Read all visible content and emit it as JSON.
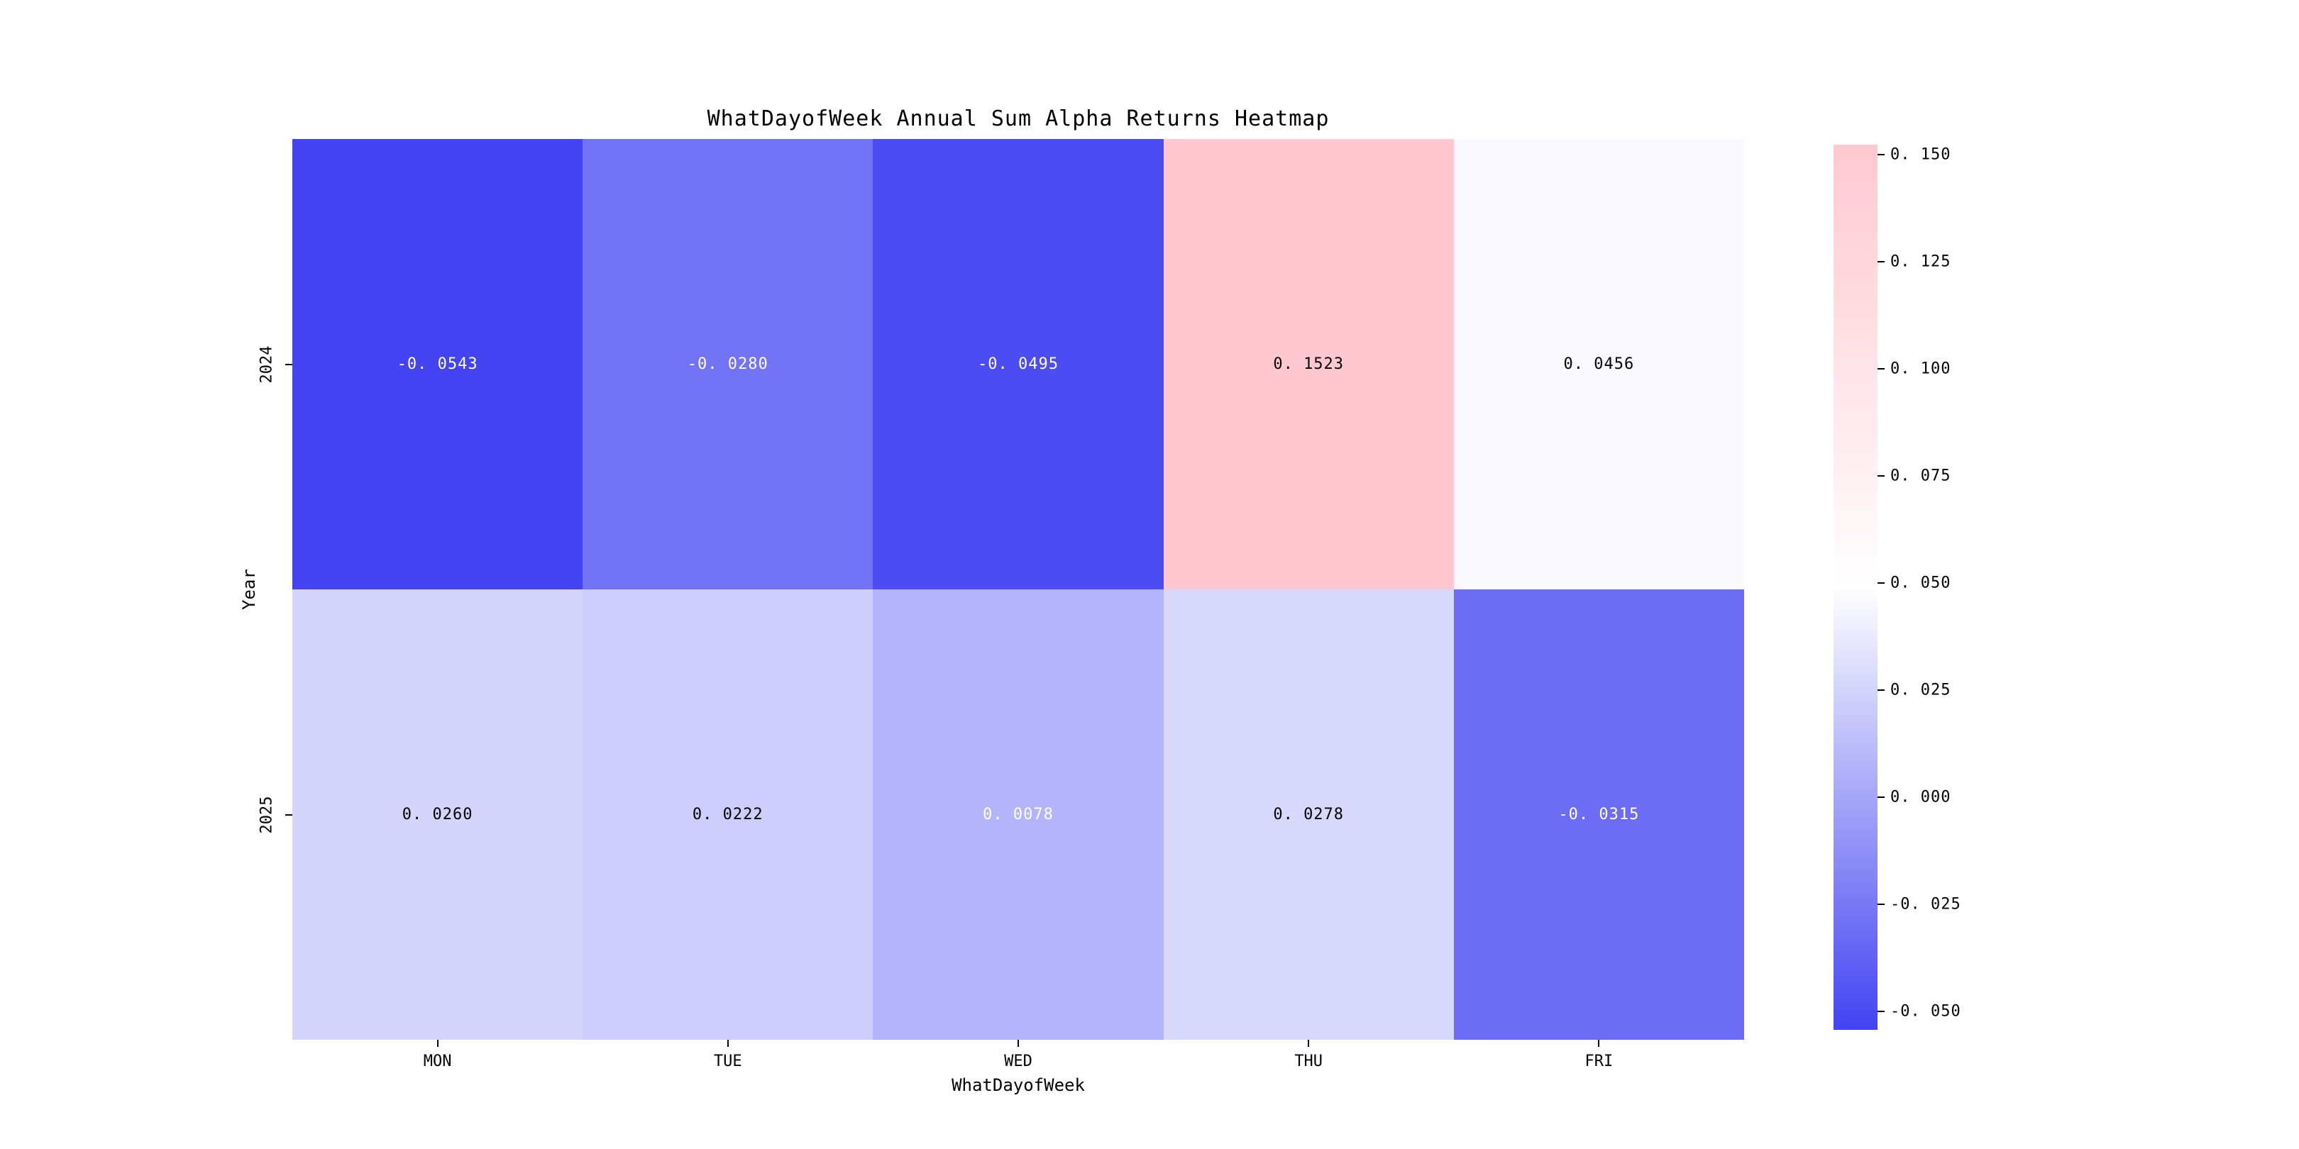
{
  "chart_data": {
    "type": "heatmap",
    "title": "WhatDayofWeek Annual Sum Alpha Returns Heatmap",
    "xlabel": "WhatDayofWeek",
    "ylabel": "Year",
    "x_categories": [
      "MON",
      "TUE",
      "WED",
      "THU",
      "FRI"
    ],
    "y_categories": [
      "2024",
      "2025"
    ],
    "values": [
      [
        -0.0543,
        -0.028,
        -0.0495,
        0.1523,
        0.0456
      ],
      [
        0.026,
        0.0222,
        0.0078,
        0.0278,
        -0.0315
      ]
    ],
    "cell_labels": [
      [
        "-0. 0543",
        "-0. 0280",
        "-0. 0495",
        "0. 1523",
        "0. 0456"
      ],
      [
        "0. 0260",
        "0. 0222",
        "0. 0078",
        "0. 0278",
        "-0. 0315"
      ]
    ],
    "text_colors": [
      [
        "#ffffff",
        "#ffffff",
        "#ffffff",
        "#000000",
        "#000000"
      ],
      [
        "#000000",
        "#000000",
        "#ffffff",
        "#000000",
        "#ffffff"
      ]
    ],
    "vmin": -0.0543,
    "vmax": 0.1523,
    "colormap": {
      "low": "#4343f2",
      "mid": "#ffffff",
      "high": "#ffc8d1"
    },
    "colorbar": {
      "tick_values": [
        0.15,
        0.125,
        0.1,
        0.075,
        0.05,
        0.025,
        0.0,
        -0.025,
        -0.05
      ],
      "tick_labels": [
        "0. 150",
        "0. 125",
        "0. 100",
        "0. 075",
        "0. 050",
        "0. 025",
        "0. 000",
        "-0. 025",
        "-0. 050"
      ]
    },
    "grid": false,
    "legend": "colorbar-right",
    "background": "#ffffff"
  }
}
